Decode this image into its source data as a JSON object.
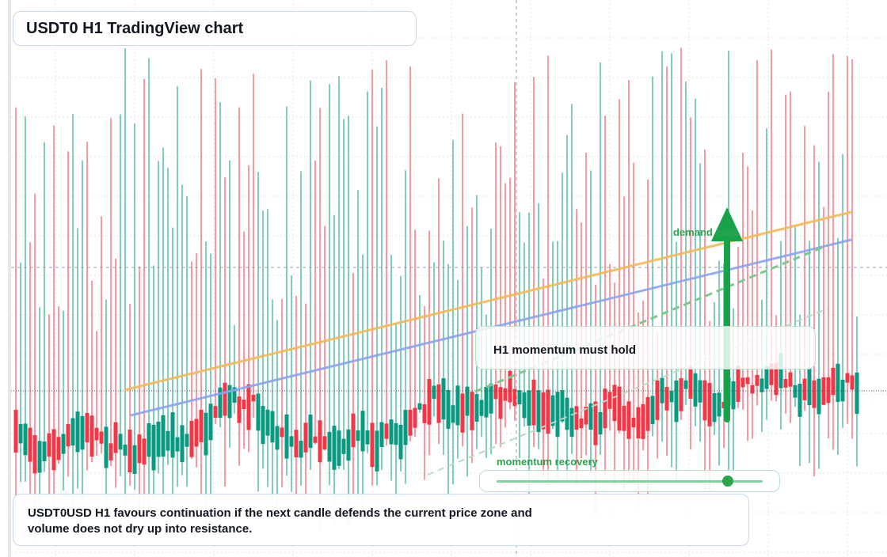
{
  "header": {
    "title": "USDT0 H1 TradingView chart"
  },
  "annotations": {
    "zone": "demand zone",
    "callout": "H1 momentum must hold",
    "slider": "momentum recovery"
  },
  "caption": {
    "text": "USDT0USD H1 favours continuation if the next candle defends the current price zone and volume does not dry up into resistance."
  }
}
